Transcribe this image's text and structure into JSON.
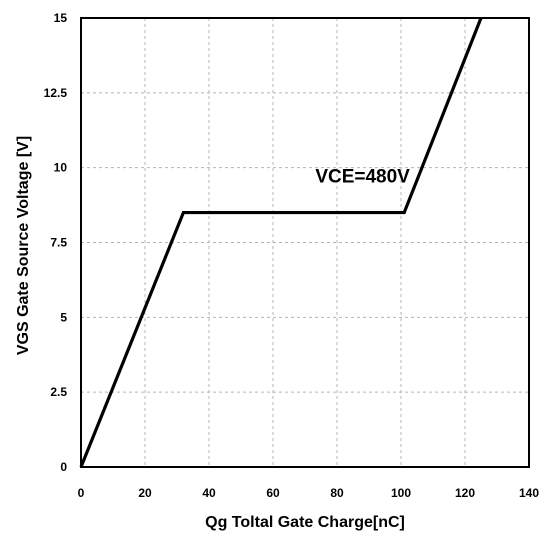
{
  "chart_data": {
    "type": "line",
    "title": "",
    "xlabel": "Qg Toltal Gate Charge[nC]",
    "ylabel": "VGS Gate Source Voltage [V]",
    "xlim": [
      0,
      140
    ],
    "ylim": [
      0,
      15
    ],
    "x_ticks": [
      0,
      20,
      40,
      60,
      80,
      100,
      120,
      140
    ],
    "y_ticks": [
      0,
      2.5,
      5,
      7.5,
      10,
      12.5,
      15
    ],
    "x_tick_labels": [
      "0",
      "20",
      "40",
      "60",
      "80",
      "100",
      "120",
      "140"
    ],
    "y_tick_labels": [
      "0",
      "2.5",
      "5",
      "7.5",
      "10",
      "12.5",
      "15"
    ],
    "grid": true,
    "series": [
      {
        "name": "",
        "color": "#000000",
        "x": [
          0,
          32,
          101,
          125
        ],
        "y": [
          0,
          8.5,
          8.5,
          15
        ]
      }
    ],
    "annotations": [
      {
        "text": "VCE=480V",
        "x": 88,
        "y": 9.5
      }
    ]
  }
}
